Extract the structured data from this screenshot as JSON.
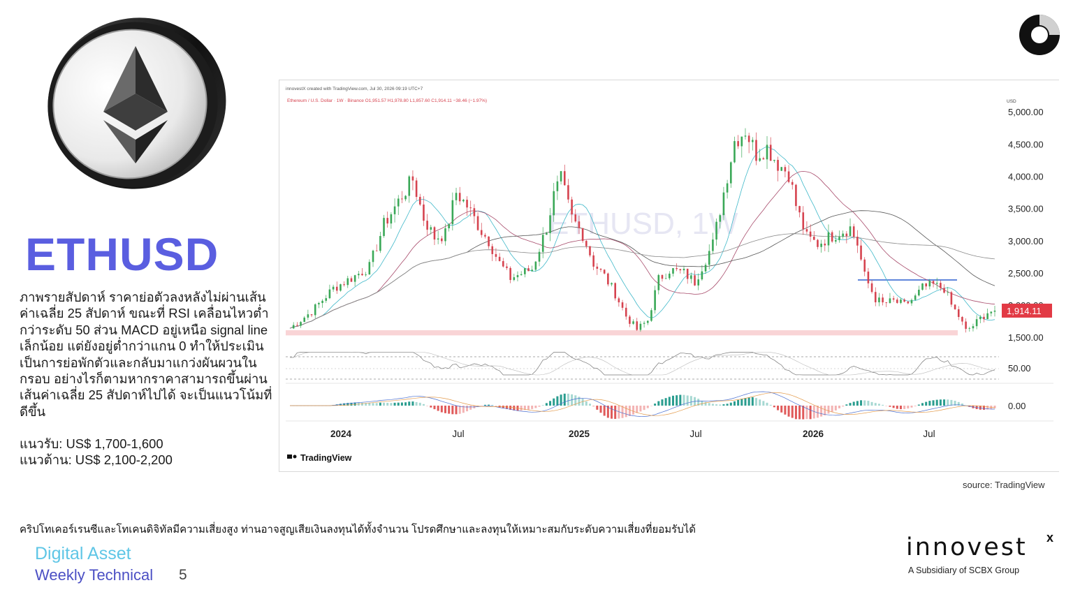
{
  "title": "ETHUSD",
  "description": "ภาพรายสัปดาห์ ราคาย่อตัวลงหลังไม่ผ่านเส้นค่าเฉลี่ย 25 สัปดาห์ ขณะที่ RSI เคลื่อนไหวต่ำกว่าระดับ 50 ส่วน MACD อยู่เหนือ signal line เล็กน้อย แต่ยังอยู่ต่ำกว่าแกน 0 ทำให้ประเมินเป็นการย่อพักตัวและกลับมาแกว่งผันผวนในกรอบ อย่างไรก็ตามหากราคาสามารถขึ้นผ่านเส้นค่าเฉลี่ย 25 สัปดาห์ไปได้ จะเป็นแนวโน้มที่ดีขึ้น",
  "support": "แนวรับ: US$ 1,700-1,600",
  "resistance": "แนวต้าน: US$ 2,100-2,200",
  "source": "source: TradingView",
  "disclaimer": "คริปโทเคอร์เรนซีและโทเคนดิจิทัลมีความเสี่ยงสูง ท่านอาจสูญเสียเงินลงทุนได้ทั้งจำนวน โปรดศึกษาและลงทุนให้เหมาะสมกับระดับความเสี่ยงที่ยอมรับได้",
  "footer": {
    "line1": "Digital Asset",
    "line2": "Weekly Technical",
    "page": "5"
  },
  "brand": {
    "name": "innovest",
    "mark": "x",
    "sub": "A Subsidiary of SCBX Group"
  },
  "colors": {
    "title": "#5a5ee0",
    "up": "#3aa857",
    "down": "#d6434f",
    "price_badge": "#e23a45",
    "support_zone": "#f7c9cc",
    "resistance_line": "#2c5fcf"
  },
  "chart_data": {
    "type": "candlestick",
    "header": "innovestX created with TradingView.com, Jul 30, 2026 09:19 UTC+7",
    "legend": "Ethereum / U.S. Dollar · 1W · Binance  O1,951.57  H1,978.80  L1,857.60  C1,914.11  −38.46 (−1.97%)",
    "watermark": "ETHUSD, 1W",
    "y_unit": "USD",
    "yticks": [
      "5,000.00",
      "4,500.00",
      "4,000.00",
      "3,500.00",
      "3,000.00",
      "2,500.00",
      "2,000.00",
      "1,500.00"
    ],
    "ytick_values": [
      5000,
      4500,
      4000,
      3500,
      3000,
      2500,
      2000,
      1500
    ],
    "ylim": [
      1350,
      5100
    ],
    "last_price": "1,914.11",
    "last_price_value": 1914.11,
    "xticks": [
      "2024",
      "Jul",
      "2025",
      "Jul",
      "2026",
      "Jul"
    ],
    "rsi_tick": "50.00",
    "macd_tick": "0.00",
    "support_zone": [
      1530,
      1610
    ],
    "resistance_level": 2390,
    "price_path": [
      [
        0,
        1640
      ],
      [
        6,
        1900
      ],
      [
        12,
        2260
      ],
      [
        17,
        2420
      ],
      [
        22,
        2590
      ],
      [
        26,
        3250
      ],
      [
        31,
        3700
      ],
      [
        34,
        3950
      ],
      [
        37,
        3350
      ],
      [
        40,
        3050
      ],
      [
        43,
        3100
      ],
      [
        46,
        3750
      ],
      [
        49,
        3540
      ],
      [
        53,
        3150
      ],
      [
        55,
        3000
      ],
      [
        58,
        2650
      ],
      [
        61,
        2420
      ],
      [
        64,
        2490
      ],
      [
        67,
        2560
      ],
      [
        71,
        3200
      ],
      [
        73,
        3700
      ],
      [
        75,
        3950
      ],
      [
        78,
        3350
      ],
      [
        81,
        3100
      ],
      [
        84,
        2650
      ],
      [
        87,
        2450
      ],
      [
        90,
        2180
      ],
      [
        93,
        1830
      ],
      [
        96,
        1620
      ],
      [
        99,
        1760
      ],
      [
        102,
        2400
      ],
      [
        105,
        2550
      ],
      [
        109,
        2500
      ],
      [
        112,
        2360
      ],
      [
        114,
        2600
      ],
      [
        117,
        2950
      ],
      [
        120,
        3750
      ],
      [
        123,
        4550
      ],
      [
        126,
        4720
      ],
      [
        129,
        4350
      ],
      [
        132,
        4450
      ],
      [
        135,
        4200
      ],
      [
        138,
        4050
      ],
      [
        140,
        3550
      ],
      [
        143,
        3050
      ],
      [
        146,
        2950
      ],
      [
        149,
        3050
      ],
      [
        152,
        3130
      ],
      [
        155,
        3200
      ],
      [
        157,
        2950
      ],
      [
        159,
        2450
      ],
      [
        162,
        2100
      ],
      [
        164,
        2020
      ],
      [
        167,
        2060
      ],
      [
        170,
        2000
      ],
      [
        173,
        2120
      ],
      [
        175,
        2270
      ],
      [
        178,
        2310
      ],
      [
        181,
        2260
      ],
      [
        183,
        2000
      ],
      [
        185,
        1830
      ],
      [
        187,
        1600
      ],
      [
        189,
        1680
      ],
      [
        191,
        1790
      ],
      [
        193,
        1890
      ],
      [
        195,
        1914
      ]
    ],
    "indicators": [
      "MA 10 (teal)",
      "MA 25 (purple)",
      "MA 50 (dark)",
      "MA 200 (grey)",
      "RSI 14",
      "MACD"
    ]
  }
}
